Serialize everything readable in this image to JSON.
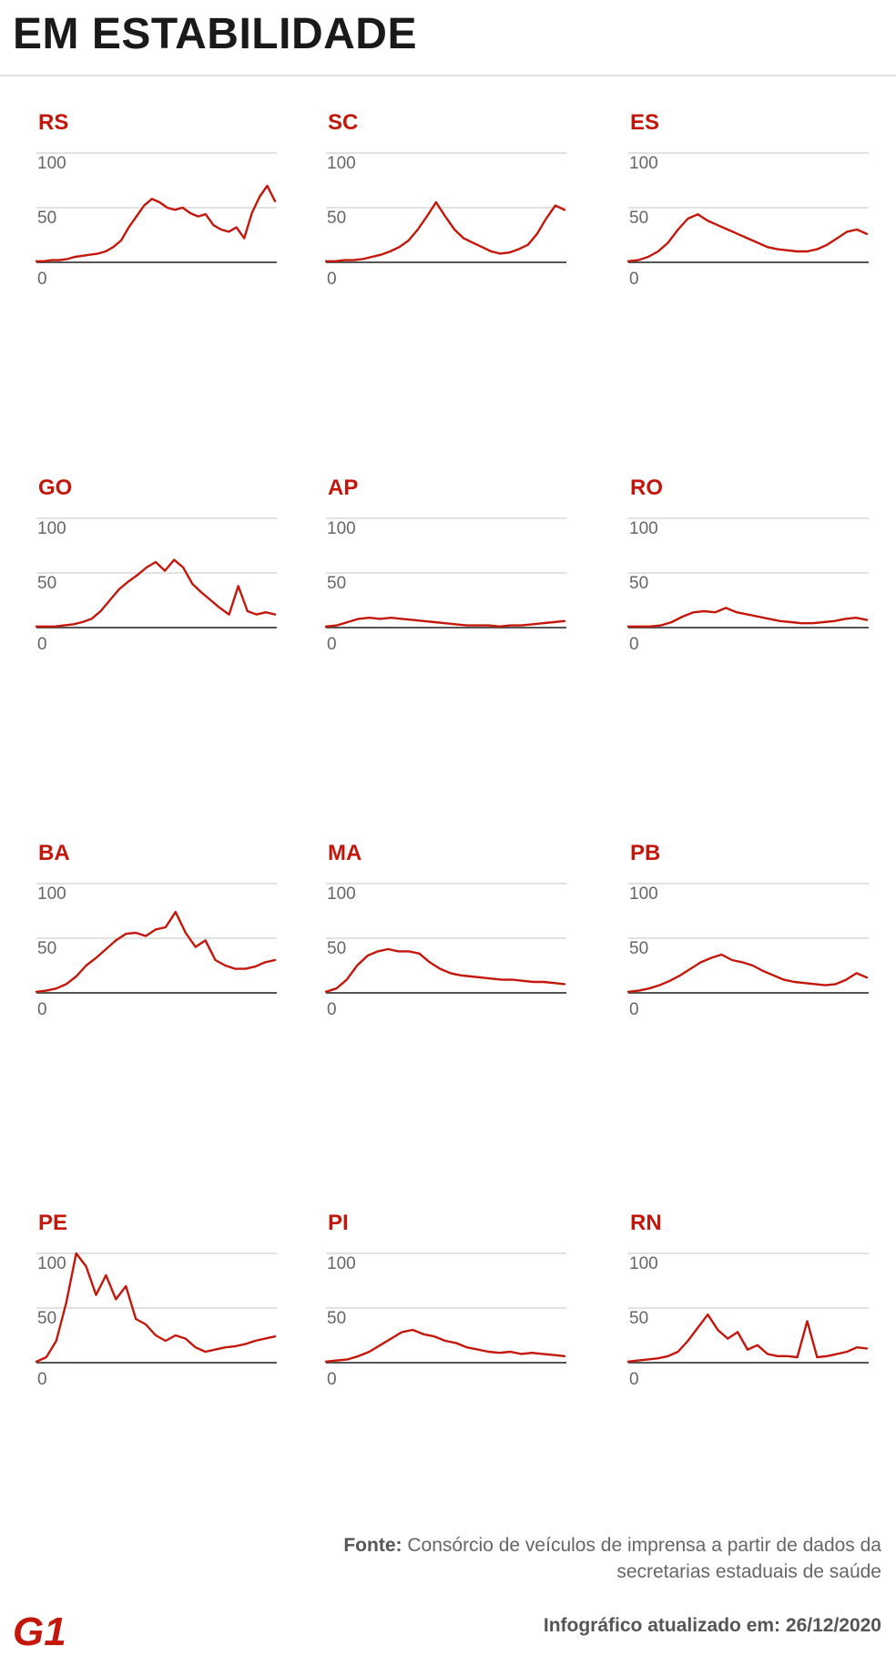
{
  "header": {
    "title": "EM ESTABILIDADE"
  },
  "footer": {
    "source_label": "Fonte:",
    "source_text": "Consórcio de veículos de imprensa a partir de dados da secretarias estaduais de saúde",
    "updated": "Infográfico atualizado em: 26/12/2020"
  },
  "logo": {
    "text": "G1",
    "color": "#c4170c"
  },
  "colors": {
    "line": "#c4170c",
    "label": "#c4170c",
    "grid": "#d0d0d0",
    "baseline": "#555555",
    "tick": "#666666"
  },
  "chart_data": [
    {
      "type": "line",
      "title": "RS",
      "ylim": [
        0,
        100
      ],
      "yticks": [
        0,
        50,
        100
      ],
      "y": [
        1,
        1,
        2,
        2,
        3,
        5,
        6,
        7,
        8,
        10,
        14,
        20,
        32,
        42,
        52,
        58,
        55,
        50,
        48,
        50,
        45,
        42,
        44,
        34,
        30,
        28,
        32,
        22,
        45,
        60,
        70,
        56
      ]
    },
    {
      "type": "line",
      "title": "SC",
      "ylim": [
        0,
        100
      ],
      "yticks": [
        0,
        50,
        100
      ],
      "y": [
        1,
        1,
        2,
        2,
        3,
        5,
        7,
        10,
        14,
        20,
        30,
        42,
        55,
        42,
        30,
        22,
        18,
        14,
        10,
        8,
        9,
        12,
        16,
        26,
        40,
        52,
        48
      ]
    },
    {
      "type": "line",
      "title": "ES",
      "ylim": [
        0,
        100
      ],
      "yticks": [
        0,
        50,
        100
      ],
      "y": [
        1,
        2,
        5,
        10,
        18,
        30,
        40,
        44,
        38,
        34,
        30,
        26,
        22,
        18,
        14,
        12,
        11,
        10,
        10,
        12,
        16,
        22,
        28,
        30,
        26
      ]
    },
    {
      "type": "line",
      "title": "GO",
      "ylim": [
        0,
        100
      ],
      "yticks": [
        0,
        50,
        100
      ],
      "y": [
        1,
        1,
        1,
        2,
        3,
        5,
        8,
        15,
        25,
        35,
        42,
        48,
        55,
        60,
        52,
        62,
        55,
        40,
        32,
        25,
        18,
        12,
        38,
        15,
        12,
        14,
        12
      ]
    },
    {
      "type": "line",
      "title": "AP",
      "ylim": [
        0,
        100
      ],
      "yticks": [
        0,
        50,
        100
      ],
      "y": [
        1,
        2,
        5,
        8,
        9,
        8,
        9,
        8,
        7,
        6,
        5,
        4,
        3,
        2,
        2,
        2,
        1,
        2,
        2,
        3,
        4,
        5,
        6
      ]
    },
    {
      "type": "line",
      "title": "RO",
      "ylim": [
        0,
        100
      ],
      "yticks": [
        0,
        50,
        100
      ],
      "y": [
        1,
        1,
        1,
        2,
        5,
        10,
        14,
        15,
        14,
        18,
        14,
        12,
        10,
        8,
        6,
        5,
        4,
        4,
        5,
        6,
        8,
        9,
        7
      ]
    },
    {
      "type": "line",
      "title": "BA",
      "ylim": [
        0,
        100
      ],
      "yticks": [
        0,
        50,
        100
      ],
      "y": [
        1,
        2,
        4,
        8,
        15,
        25,
        32,
        40,
        48,
        54,
        55,
        52,
        58,
        60,
        74,
        55,
        42,
        48,
        30,
        25,
        22,
        22,
        24,
        28,
        30
      ]
    },
    {
      "type": "line",
      "title": "MA",
      "ylim": [
        0,
        100
      ],
      "yticks": [
        0,
        50,
        100
      ],
      "y": [
        1,
        4,
        12,
        25,
        34,
        38,
        40,
        38,
        38,
        36,
        28,
        22,
        18,
        16,
        15,
        14,
        13,
        12,
        12,
        11,
        10,
        10,
        9,
        8
      ]
    },
    {
      "type": "line",
      "title": "PB",
      "ylim": [
        0,
        100
      ],
      "yticks": [
        0,
        50,
        100
      ],
      "y": [
        1,
        2,
        4,
        7,
        11,
        16,
        22,
        28,
        32,
        35,
        30,
        28,
        25,
        20,
        16,
        12,
        10,
        9,
        8,
        7,
        8,
        12,
        18,
        14
      ]
    },
    {
      "type": "line",
      "title": "PE",
      "ylim": [
        0,
        100
      ],
      "yticks": [
        0,
        50,
        100
      ],
      "y": [
        1,
        5,
        20,
        55,
        100,
        88,
        62,
        80,
        58,
        70,
        40,
        35,
        25,
        20,
        25,
        22,
        14,
        10,
        12,
        14,
        15,
        17,
        20,
        22,
        24
      ]
    },
    {
      "type": "line",
      "title": "PI",
      "ylim": [
        0,
        100
      ],
      "yticks": [
        0,
        50,
        100
      ],
      "y": [
        1,
        2,
        3,
        6,
        10,
        16,
        22,
        28,
        30,
        26,
        24,
        20,
        18,
        14,
        12,
        10,
        9,
        10,
        8,
        9,
        8,
        7,
        6
      ]
    },
    {
      "type": "line",
      "title": "RN",
      "ylim": [
        0,
        100
      ],
      "yticks": [
        0,
        50,
        100
      ],
      "y": [
        1,
        2,
        3,
        4,
        6,
        10,
        20,
        32,
        44,
        30,
        22,
        28,
        12,
        16,
        8,
        6,
        6,
        5,
        38,
        5,
        6,
        8,
        10,
        14,
        13
      ]
    }
  ]
}
